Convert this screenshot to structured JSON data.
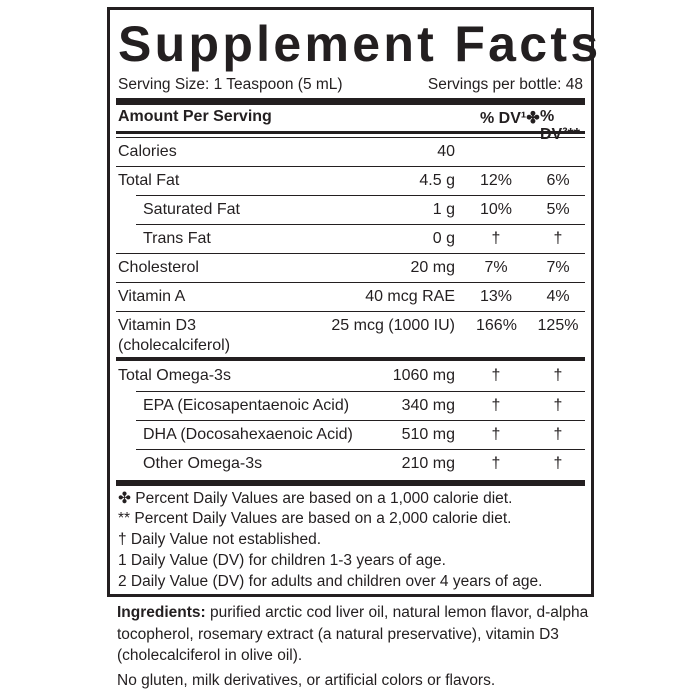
{
  "title": "Supplement Facts",
  "serving_size": "Serving Size: 1 Teaspoon (5 mL)",
  "servings_per": "Servings per bottle: 48",
  "header": {
    "amount": "Amount Per Serving",
    "dv1": "% DV¹✤",
    "dv2": "% DV²**"
  },
  "rows": [
    {
      "name": "Calories",
      "amount": "40",
      "dv1": "",
      "dv2": ""
    },
    {
      "name": "Total Fat",
      "amount": "4.5 g",
      "dv1": "12%",
      "dv2": "6%"
    },
    {
      "name": "Saturated Fat",
      "amount": "1 g",
      "dv1": "10%",
      "dv2": "5%"
    },
    {
      "name": "Trans Fat",
      "amount": "0 g",
      "dv1": "†",
      "dv2": "†"
    },
    {
      "name": "Cholesterol",
      "amount": "20 mg",
      "dv1": "7%",
      "dv2": "7%"
    },
    {
      "name": "Vitamin A",
      "amount": "40 mcg RAE",
      "dv1": "13%",
      "dv2": "4%"
    },
    {
      "name": "Vitamin D3",
      "name2": "(cholecalciferol)",
      "amount": "25 mcg (1000 IU)",
      "dv1": "166%",
      "dv2": "125%"
    },
    {
      "name": "Total Omega-3s",
      "amount": "1060 mg",
      "dv1": "†",
      "dv2": "†"
    },
    {
      "name": "EPA (Eicosapentaenoic Acid)",
      "amount": "340 mg",
      "dv1": "†",
      "dv2": "†"
    },
    {
      "name": "DHA (Docosahexaenoic Acid)",
      "amount": "510 mg",
      "dv1": "†",
      "dv2": "†"
    },
    {
      "name": "Other Omega-3s",
      "amount": "210 mg",
      "dv1": "†",
      "dv2": "†"
    }
  ],
  "footnotes": [
    "✤ Percent Daily Values are based on a 1,000 calorie diet.",
    "** Percent Daily Values are based on a 2,000 calorie diet.",
    "†  Daily Value not established.",
    "1  Daily Value (DV) for children 1-3 years of age.",
    "2  Daily Value (DV) for adults and children over 4 years of age."
  ],
  "ingredients": {
    "label": "Ingredients:",
    "text": " purified arctic cod liver oil, natural lemon flavor, d-alpha tocopherol, rosemary extract (a natural preservative), vitamin D3 (cholecalciferol in olive oil).",
    "note": "No gluten, milk derivatives, or artificial colors or flavors."
  }
}
